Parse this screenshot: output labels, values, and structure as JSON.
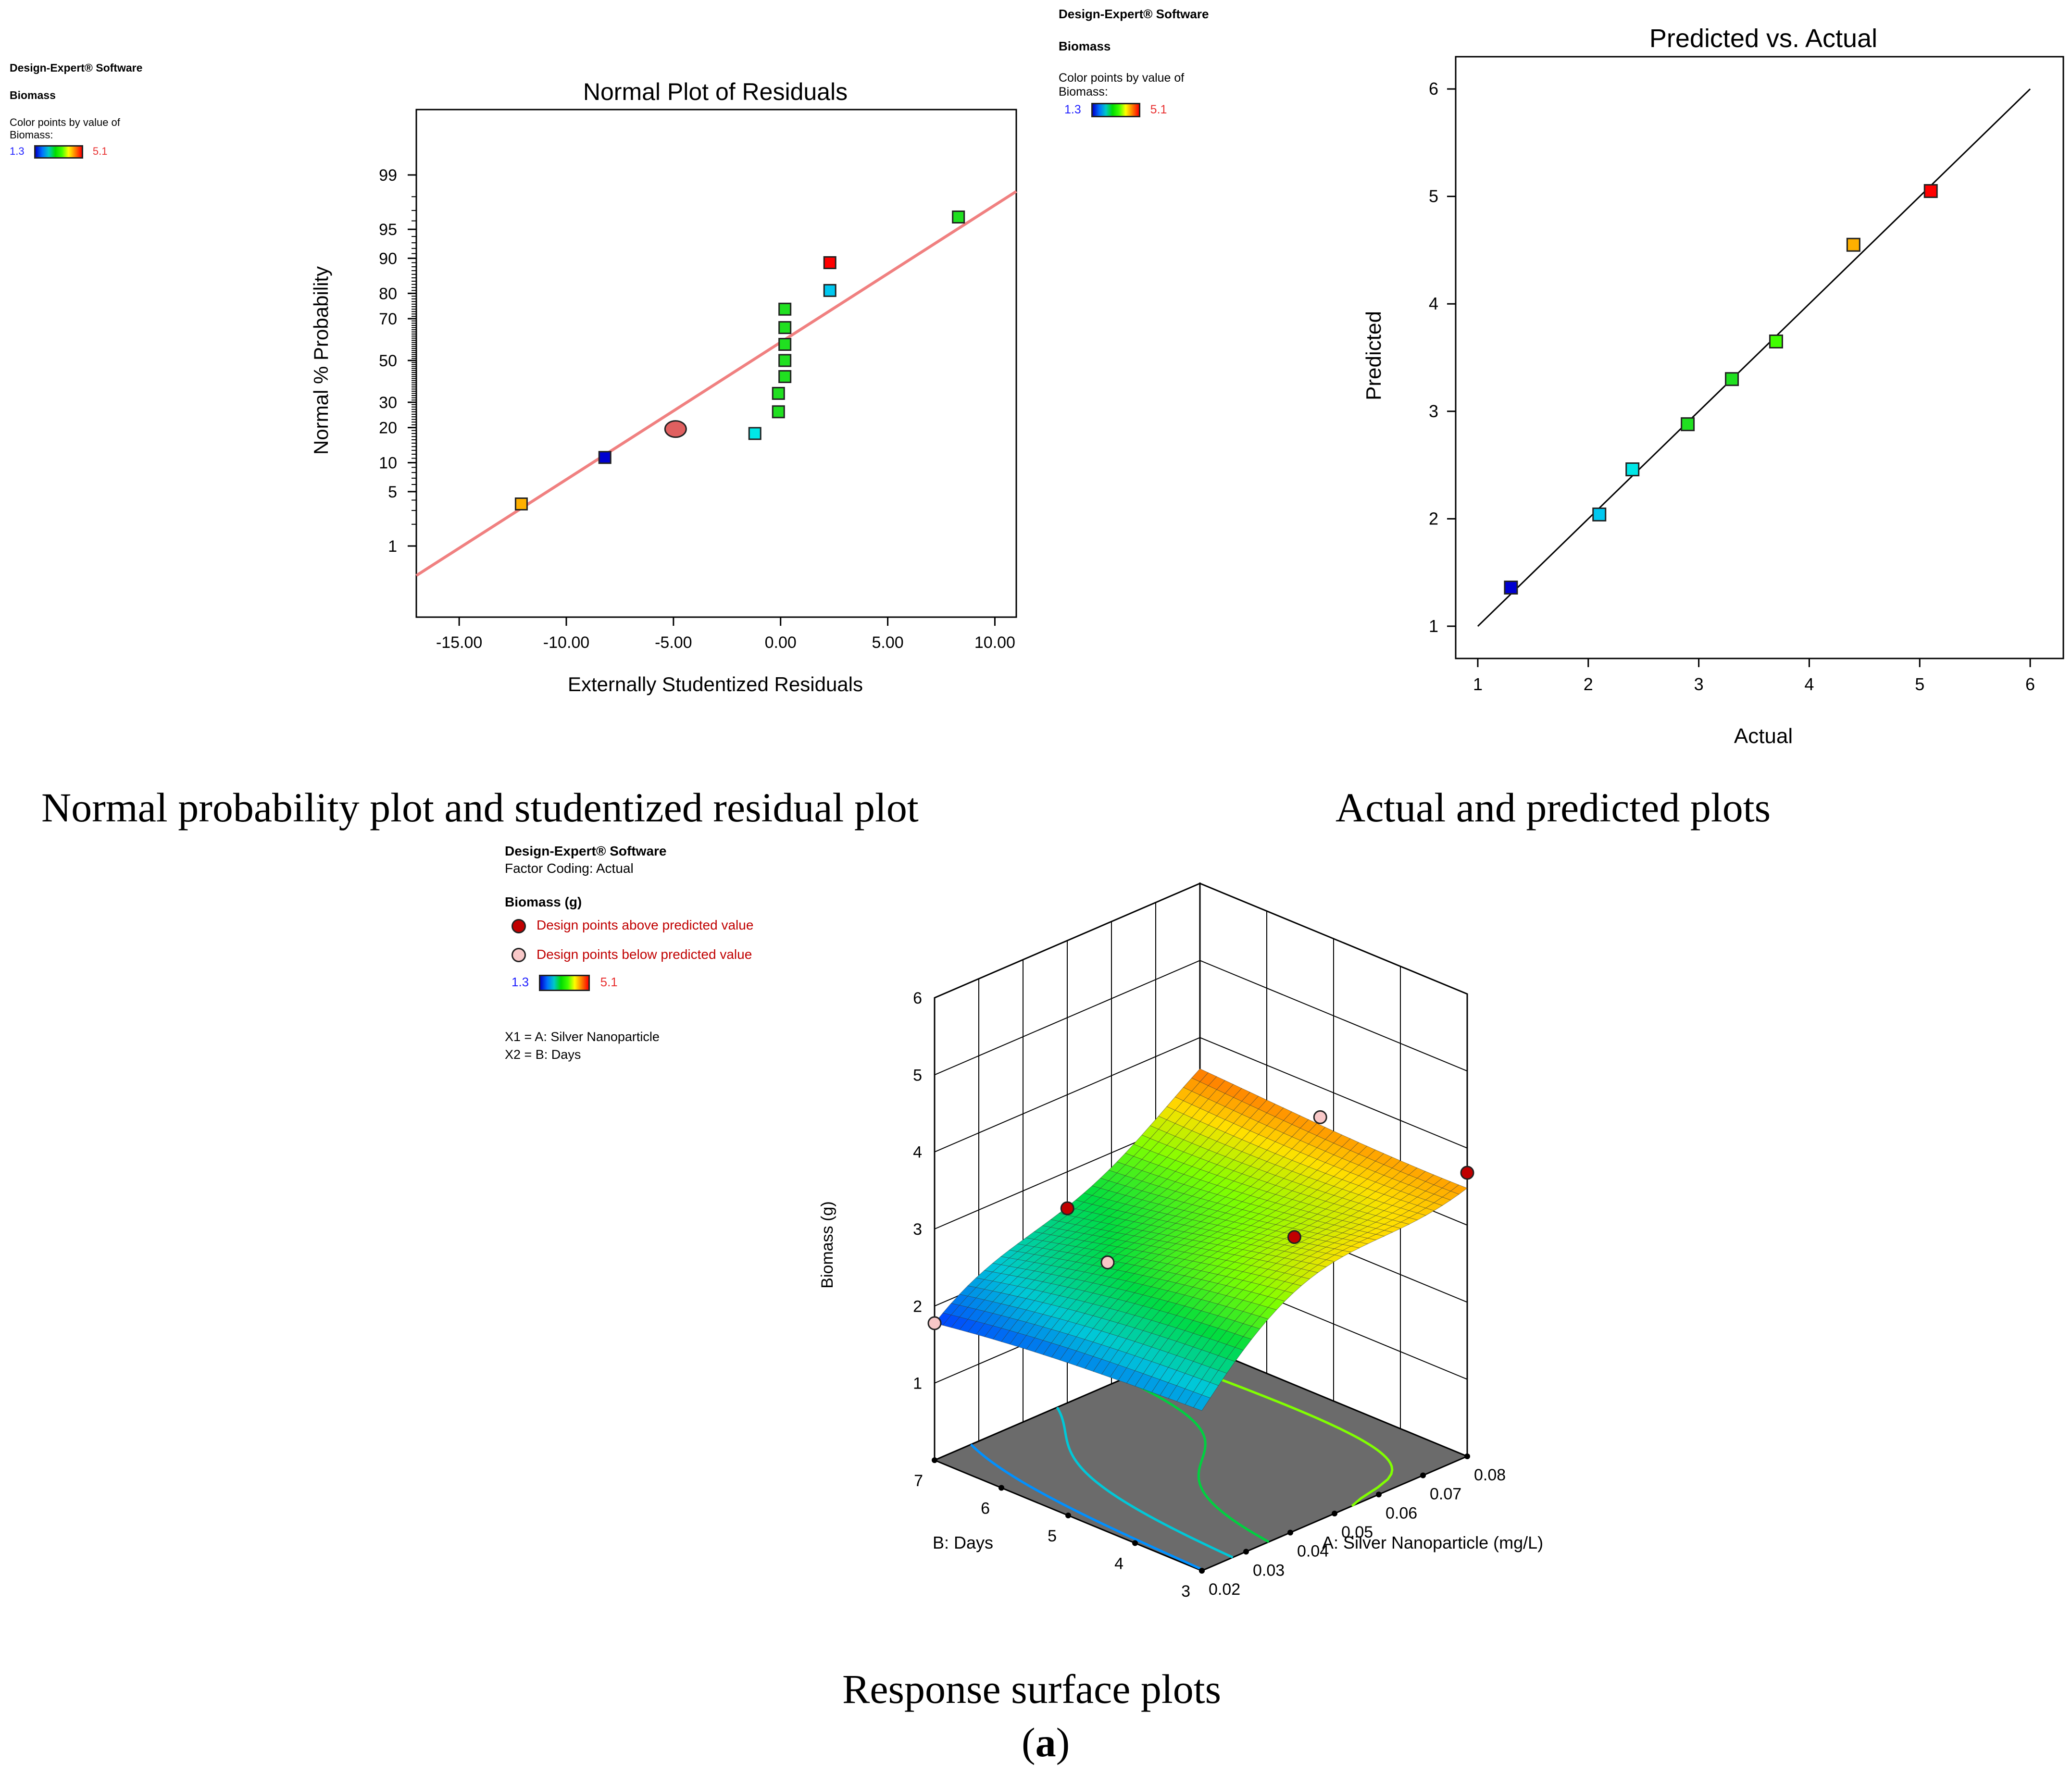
{
  "colors": {
    "low": "#2020ff",
    "high": "#e83030",
    "fit_line": "#f08080",
    "floor": "#6b6b6b"
  },
  "captions": {
    "normal": "Normal probability plot and studentized residual plot",
    "actual": "Actual and predicted plots",
    "surface": "Response surface plots",
    "panel_a": "(a)"
  },
  "legend_normal": {
    "software": "Design-Expert® Software",
    "response": "Biomass",
    "color_by": "Color points by value of",
    "color_by2": "Biomass:",
    "low": "1.3",
    "high": "5.1"
  },
  "legend_actual": {
    "software": "Design-Expert® Software",
    "response": "Biomass",
    "color_by": "Color points by value of",
    "color_by2": "Biomass:",
    "low": "1.3",
    "high": "5.1"
  },
  "legend_surface": {
    "software": "Design-Expert® Software",
    "coding": "Factor Coding: Actual",
    "response": "Biomass (g)",
    "above": "Design points above predicted value",
    "below": "Design points below predicted value",
    "low": "1.3",
    "high": "5.1",
    "x1": "X1 = A: Silver Nanoparticle",
    "x2": "X2 = B: Days"
  },
  "chart_data": [
    {
      "type": "scatter",
      "title": "Normal Plot of Residuals",
      "xlabel": "Externally Studentized Residuals",
      "ylabel": "Normal % Probability",
      "xlim": [
        -17.0,
        11.0
      ],
      "xticks": [
        "-15.00",
        "-10.00",
        "-5.00",
        "0.00",
        "5.00",
        "10.00"
      ],
      "yticks": [
        "1",
        "5",
        "10",
        "20",
        "30",
        "50",
        "70",
        "80",
        "90",
        "95",
        "99"
      ],
      "fit_line": [
        [
          -17.0,
          0.35
        ],
        [
          11.0,
          98.3
        ]
      ],
      "points": [
        {
          "x": -12.1,
          "y": 3.6,
          "color": "#ffb000"
        },
        {
          "x": -8.2,
          "y": 11.2,
          "color": "#0000d0"
        },
        {
          "x": -4.9,
          "y": 19.5,
          "color": "#e06060",
          "marker": "circle"
        },
        {
          "x": -1.2,
          "y": 18.0,
          "color": "#00e8e8"
        },
        {
          "x": -0.1,
          "y": 26.0,
          "color": "#20e020"
        },
        {
          "x": -0.1,
          "y": 34.0,
          "color": "#20e020"
        },
        {
          "x": 0.2,
          "y": 42.0,
          "color": "#20e020"
        },
        {
          "x": 0.2,
          "y": 50.0,
          "color": "#20e020"
        },
        {
          "x": 0.2,
          "y": 58.0,
          "color": "#20e020"
        },
        {
          "x": 0.2,
          "y": 66.0,
          "color": "#20e020"
        },
        {
          "x": 0.2,
          "y": 74.0,
          "color": "#20e020"
        },
        {
          "x": 2.3,
          "y": 81.0,
          "color": "#00c8f0"
        },
        {
          "x": 2.3,
          "y": 89.0,
          "color": "#ff0000"
        },
        {
          "x": 8.3,
          "y": 96.4,
          "color": "#20e020"
        }
      ]
    },
    {
      "type": "scatter",
      "title": "Predicted vs. Actual",
      "xlabel": "Actual",
      "ylabel": "Predicted",
      "xlim": [
        0.8,
        6.3
      ],
      "ylim": [
        0.7,
        6.3
      ],
      "xticks": [
        "1",
        "2",
        "3",
        "4",
        "5",
        "6"
      ],
      "yticks": [
        "1",
        "2",
        "3",
        "4",
        "5",
        "6"
      ],
      "fit_line": [
        [
          1,
          1
        ],
        [
          6,
          6
        ]
      ],
      "points": [
        {
          "x": 1.3,
          "y": 1.36,
          "color": "#0000d0"
        },
        {
          "x": 2.1,
          "y": 2.04,
          "color": "#00c8f0"
        },
        {
          "x": 2.4,
          "y": 2.46,
          "color": "#00e8e8"
        },
        {
          "x": 2.9,
          "y": 2.88,
          "color": "#20e020"
        },
        {
          "x": 3.3,
          "y": 3.3,
          "color": "#20e020"
        },
        {
          "x": 3.7,
          "y": 3.65,
          "color": "#40ff00"
        },
        {
          "x": 4.4,
          "y": 4.55,
          "color": "#ffb000"
        },
        {
          "x": 5.1,
          "y": 5.05,
          "color": "#ff0000"
        }
      ]
    },
    {
      "type": "surface",
      "zlabel": "Biomass (g)",
      "xlabel": "A: Silver Nanoparticle (mg/L)",
      "ylabel": "B: Days",
      "zticks": [
        "1",
        "2",
        "3",
        "4",
        "5",
        "6"
      ],
      "xticks": [
        "0.02",
        "0.03",
        "0.04",
        "0.05",
        "0.06",
        "0.07",
        "0.08"
      ],
      "yticks": [
        "3",
        "4",
        "5",
        "6",
        "7"
      ],
      "xlim": [
        0.02,
        0.08
      ],
      "ylim": [
        3,
        7
      ],
      "zlim": [
        0,
        6
      ]
    }
  ]
}
